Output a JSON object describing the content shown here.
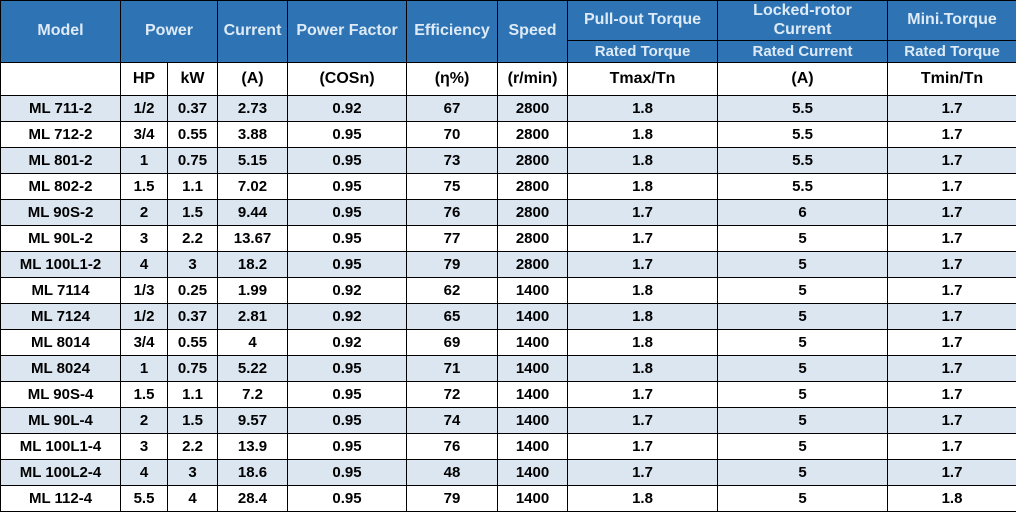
{
  "chart_data": {
    "type": "table",
    "header": {
      "model": "Model",
      "power": "Power",
      "current": "Current",
      "power_factor": "Power Factor",
      "efficiency": "Efficiency",
      "speed": "Speed",
      "pull_out_torque_numerator": "Pull-out Torque",
      "pull_out_torque_denominator": "Rated Torque",
      "locked_rotor_numerator": "Locked-rotor Current",
      "locked_rotor_denominator": "Rated Current",
      "mini_torque_numerator": "Mini.Torque",
      "mini_torque_denominator": "Rated Torque",
      "units": {
        "model_blank": "",
        "hp": "HP",
        "kw": "kW",
        "current": "(A)",
        "power_factor": "(COSn)",
        "efficiency": "(η%)",
        "speed": "(r/min)",
        "pull_out_torque": "Tmax/Tn",
        "locked_rotor_current": "(A)",
        "mini_torque": "Tmin/Tn"
      }
    },
    "columns": [
      "model",
      "power-hp",
      "power-kw",
      "current-a",
      "power-factor-cos",
      "efficiency-percent",
      "speed-rpm",
      "pullout-torque-ratio",
      "locked-rotor-current-ratio",
      "mini-torque-ratio"
    ],
    "rows": [
      [
        "ML 711-2",
        "1/2",
        "0.37",
        "2.73",
        "0.92",
        "67",
        "2800",
        "1.8",
        "5.5",
        "1.7"
      ],
      [
        "ML 712-2",
        "3/4",
        "0.55",
        "3.88",
        "0.95",
        "70",
        "2800",
        "1.8",
        "5.5",
        "1.7"
      ],
      [
        "ML 801-2",
        "1",
        "0.75",
        "5.15",
        "0.95",
        "73",
        "2800",
        "1.8",
        "5.5",
        "1.7"
      ],
      [
        "ML 802-2",
        "1.5",
        "1.1",
        "7.02",
        "0.95",
        "75",
        "2800",
        "1.8",
        "5.5",
        "1.7"
      ],
      [
        "ML 90S-2",
        "2",
        "1.5",
        "9.44",
        "0.95",
        "76",
        "2800",
        "1.7",
        "6",
        "1.7"
      ],
      [
        "ML 90L-2",
        "3",
        "2.2",
        "13.67",
        "0.95",
        "77",
        "2800",
        "1.7",
        "5",
        "1.7"
      ],
      [
        "ML 100L1-2",
        "4",
        "3",
        "18.2",
        "0.95",
        "79",
        "2800",
        "1.7",
        "5",
        "1.7"
      ],
      [
        "ML 7114",
        "1/3",
        "0.25",
        "1.99",
        "0.92",
        "62",
        "1400",
        "1.8",
        "5",
        "1.7"
      ],
      [
        "ML 7124",
        "1/2",
        "0.37",
        "2.81",
        "0.92",
        "65",
        "1400",
        "1.8",
        "5",
        "1.7"
      ],
      [
        "ML 8014",
        "3/4",
        "0.55",
        "4",
        "0.92",
        "69",
        "1400",
        "1.8",
        "5",
        "1.7"
      ],
      [
        "ML 8024",
        "1",
        "0.75",
        "5.22",
        "0.95",
        "71",
        "1400",
        "1.8",
        "5",
        "1.7"
      ],
      [
        "ML 90S-4",
        "1.5",
        "1.1",
        "7.2",
        "0.95",
        "72",
        "1400",
        "1.7",
        "5",
        "1.7"
      ],
      [
        "ML 90L-4",
        "2",
        "1.5",
        "9.57",
        "0.95",
        "74",
        "1400",
        "1.7",
        "5",
        "1.7"
      ],
      [
        "ML 100L1-4",
        "3",
        "2.2",
        "13.9",
        "0.95",
        "76",
        "1400",
        "1.7",
        "5",
        "1.7"
      ],
      [
        "ML 100L2-4",
        "4",
        "3",
        "18.6",
        "0.95",
        "48",
        "1400",
        "1.7",
        "5",
        "1.7"
      ],
      [
        "ML 112-4",
        "5.5",
        "4",
        "28.4",
        "0.95",
        "79",
        "1400",
        "1.8",
        "5",
        "1.8"
      ]
    ]
  },
  "colors": {
    "header_bg": "#2E74B5",
    "header_text": "#DEEBF7",
    "row_stripe": "#DCE6F1",
    "row_plain": "#FFFFFF",
    "grid": "#000000",
    "data_text": "#000000"
  }
}
